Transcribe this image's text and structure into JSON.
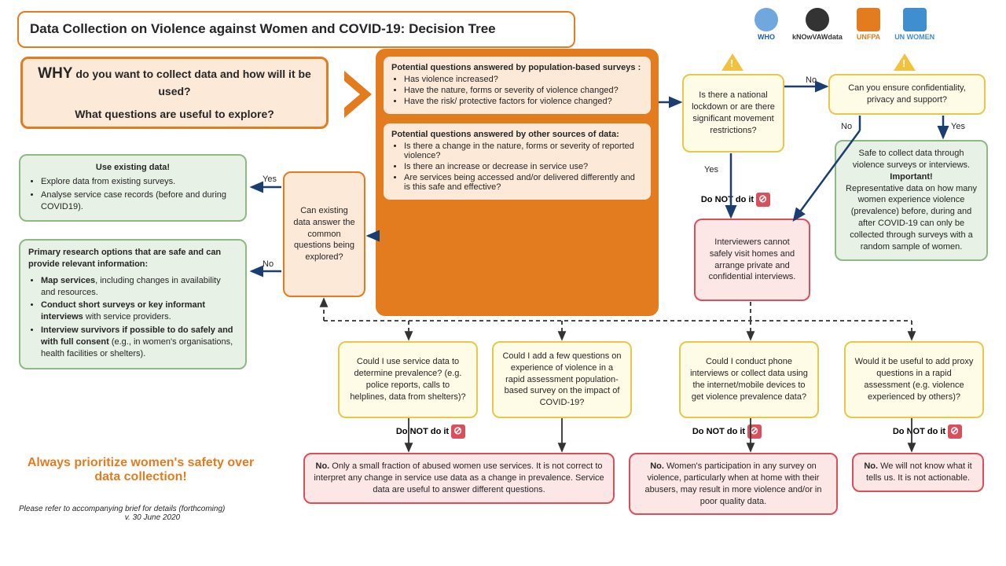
{
  "title": "Data Collection on Violence against Women and COVID-19: Decision Tree",
  "logos": [
    "WHO",
    "kNOwVAWdata",
    "UNFPA",
    "UN WOMEN"
  ],
  "why": {
    "line1_prefix": "WHY",
    "line1_rest": " do you want to collect data and how will it be used?",
    "line2": "What questions are useful to explore?"
  },
  "pop_survey": {
    "heading": "Potential questions answered by population-based surveys :",
    "items": [
      "Has violence increased?",
      "Have the nature, forms or severity of violence changed?",
      "Have the risk/ protective factors for violence changed?"
    ]
  },
  "other_sources": {
    "heading": "Potential questions answered by other sources of data:",
    "items": [
      "Is there a change in the nature, forms or severity of reported violence?",
      "Is there an increase or decrease in service use?",
      "Are services being accessed and/or delivered differently and is this safe and effective?"
    ]
  },
  "existing_q": "Can existing data answer the common questions being explored?",
  "use_existing": {
    "heading": "Use existing data!",
    "items": [
      "Explore data from existing surveys.",
      "Analyse service case records (before and during COVID19)."
    ]
  },
  "primary_research": {
    "heading": "Primary research options that are safe and can provide relevant information:",
    "items": [
      "<b>Map services</b>, including changes in availability and resources.",
      "<b>Conduct short surveys or key informant interviews</b> with service providers.",
      "<b>Interview survivors if possible to do safely and with full consent</b> (e.g., in women's organisations, health facilities or shelters)."
    ]
  },
  "lockdown_q": "Is there a national lockdown or are there significant movement restrictions?",
  "confidentiality_q": "Can you ensure confidentiality, privacy and support?",
  "safe_collect": "Safe to collect data through violence surveys or interviews.\n<b>Important!</b>\nRepresentative data on how many women experience violence (prevalence) before, during and after COVID-19 can only be collected through surveys with a random sample of women.",
  "interviewers_cannot": "Interviewers cannot safely visit homes and arrange private and confidential interviews.",
  "q_service_data": "Could I use service data to determine prevalence? (e.g. police reports, calls to helplines, data from shelters)?",
  "q_rapid_assess": "Could I add a few questions on experience of violence in a rapid assessment population-based survey on the impact of COVID-19?",
  "q_phone": "Could I conduct phone interviews or collect data using the internet/mobile devices to get violence prevalence data?",
  "q_proxy": "Would it be useful to add proxy questions in a rapid assessment (e.g. violence experienced by others)?",
  "no_service": "<b>No.</b> Only a small fraction of abused women use services. It is not correct to interpret any change in service use data as a change in prevalence. Service data are useful to answer different questions.",
  "no_phone": "<b>No.</b> Women's participation in any survey on violence, particularly when at home with their abusers, may result in more violence and/or in poor quality data.",
  "no_proxy": "<b>No.</b> We will not know what it tells us. It is not actionable.",
  "do_not": "Do NOT do it",
  "labels": {
    "yes": "Yes",
    "no": "No"
  },
  "footer_slogan": "Always prioritize women's safety over data collection!",
  "footer_note1": "Please refer to accompanying brief for details (forthcoming)",
  "footer_note2": "v. 30 June 2020"
}
